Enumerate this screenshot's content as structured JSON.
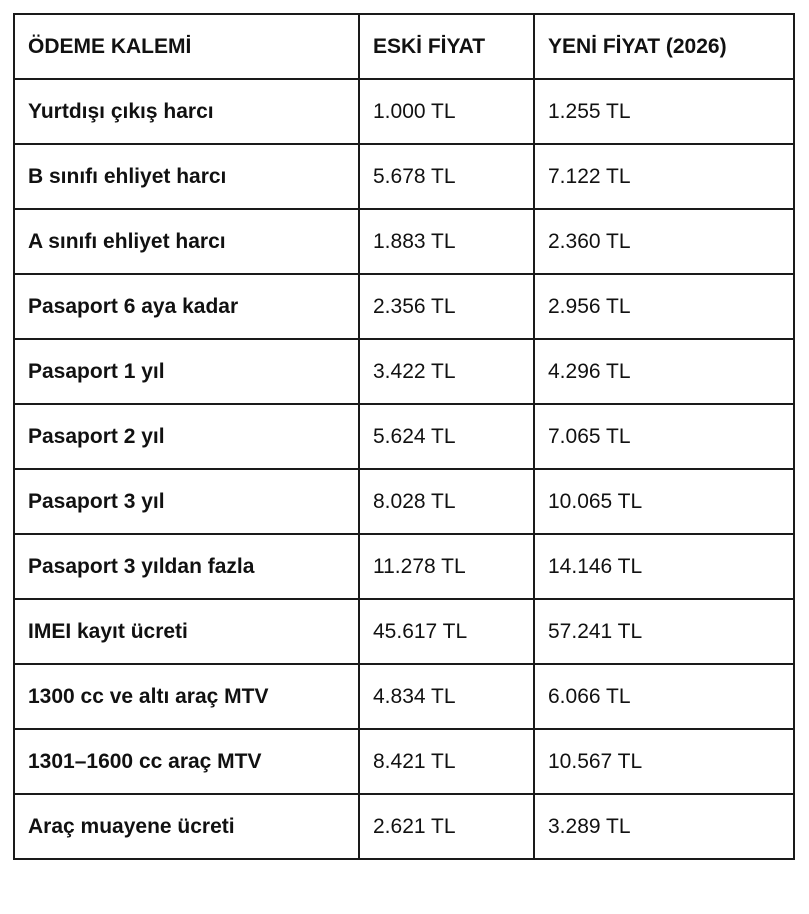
{
  "colors": {
    "border": "#1a1a1a",
    "text": "#111111",
    "background": "#ffffff"
  },
  "chart_data": {
    "type": "table",
    "columns": [
      "ÖDEME KALEMİ",
      "ESKİ FİYAT",
      "YENİ FİYAT (2026)"
    ],
    "rows": [
      [
        "Yurtdışı çıkış harcı",
        "1.000 TL",
        "1.255 TL"
      ],
      [
        "B sınıfı ehliyet harcı",
        "5.678 TL",
        "7.122 TL"
      ],
      [
        "A sınıfı ehliyet harcı",
        "1.883 TL",
        "2.360 TL"
      ],
      [
        "Pasaport 6 aya kadar",
        "2.356 TL",
        "2.956 TL"
      ],
      [
        "Pasaport 1 yıl",
        "3.422 TL",
        "4.296 TL"
      ],
      [
        "Pasaport 2 yıl",
        "5.624 TL",
        "7.065 TL"
      ],
      [
        "Pasaport 3 yıl",
        "8.028 TL",
        "10.065 TL"
      ],
      [
        "Pasaport 3 yıldan fazla",
        "11.278 TL",
        "14.146 TL"
      ],
      [
        "IMEI kayıt ücreti",
        "45.617 TL",
        "57.241 TL"
      ],
      [
        "1300 cc ve altı araç MTV",
        "4.834 TL",
        "6.066 TL"
      ],
      [
        "1301–1600 cc araç MTV",
        "8.421 TL",
        "10.567 TL"
      ],
      [
        "Araç muayene ücreti",
        "2.621 TL",
        "3.289 TL"
      ]
    ]
  }
}
